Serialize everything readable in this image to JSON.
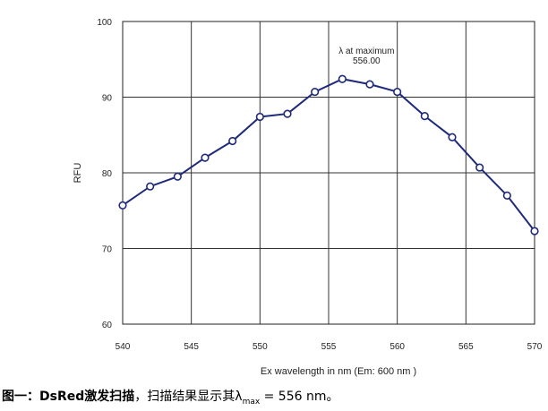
{
  "chart_data": {
    "type": "line",
    "xlabel": "Ex wavelength in nm (Em: 600 nm )",
    "ylabel": "RFU",
    "xlim": [
      540,
      570
    ],
    "ylim": [
      60,
      100
    ],
    "xticks": [
      "540",
      "545",
      "550",
      "555",
      "560",
      "565",
      "570"
    ],
    "yticks": [
      "60",
      "70",
      "80",
      "90",
      "100"
    ],
    "grid": true,
    "series": [
      {
        "x": [
          540,
          542,
          544,
          546,
          548,
          550,
          552,
          554,
          556,
          558,
          560,
          562,
          564,
          566,
          568,
          570
        ],
        "values": [
          75.7,
          78.2,
          79.5,
          82.0,
          84.2,
          87.4,
          87.8,
          90.7,
          92.4,
          91.7,
          90.7,
          87.5,
          84.7,
          80.7,
          77.0,
          72.3
        ],
        "color": "#1f2a7a"
      }
    ],
    "annotation": {
      "line1": "λ at maximum",
      "line2": "556.00"
    }
  },
  "caption": {
    "bold_part": "图一：DsRed激发扫描",
    "text_part": "，扫描结果显示其λ",
    "subscript": "max",
    "tail": " = 556 nm。"
  }
}
